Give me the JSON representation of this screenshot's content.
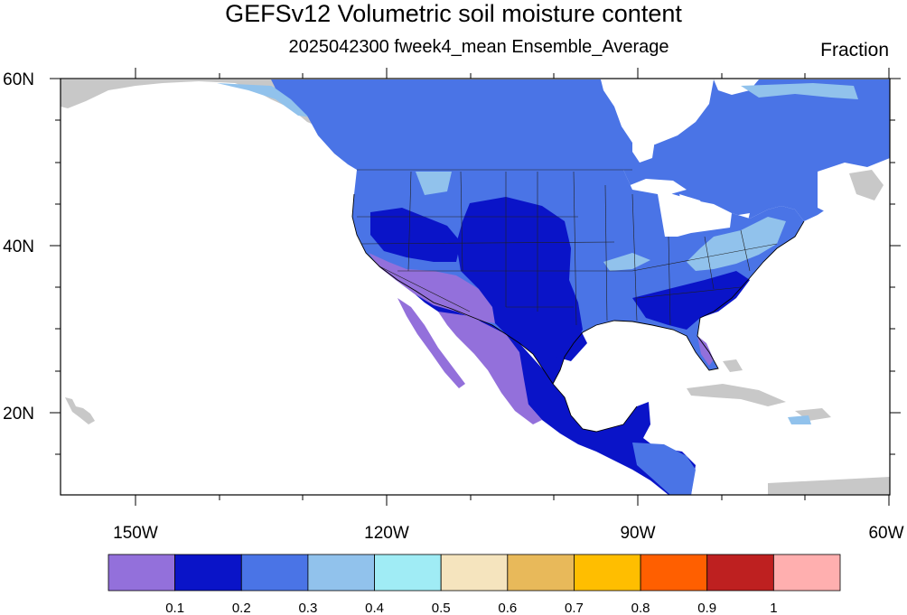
{
  "title": "GEFSv12 Volumetric soil moisture content",
  "subtitle": "2025042300 fweek4_mean Ensemble_Average",
  "units": "Fraction",
  "axes": {
    "lon_labels": [
      "150W",
      "120W",
      "90W",
      "60W"
    ],
    "lat_labels": [
      "60N",
      "40N",
      "20N"
    ]
  },
  "colorbar": {
    "colors": [
      "#9370db",
      "#0a14c8",
      "#4a74e6",
      "#91c2ec",
      "#a0ecf5",
      "#f5e4be",
      "#e8b95a",
      "#ffbe00",
      "#ff5f00",
      "#be2020",
      "#ffafaf"
    ],
    "labels": [
      "0.1",
      "0.2",
      "0.3",
      "0.4",
      "0.5",
      "0.6",
      "0.7",
      "0.8",
      "0.9",
      "1"
    ]
  },
  "colors": {
    "land_no_data": "#c8c8c8",
    "coastline": "#000000"
  }
}
